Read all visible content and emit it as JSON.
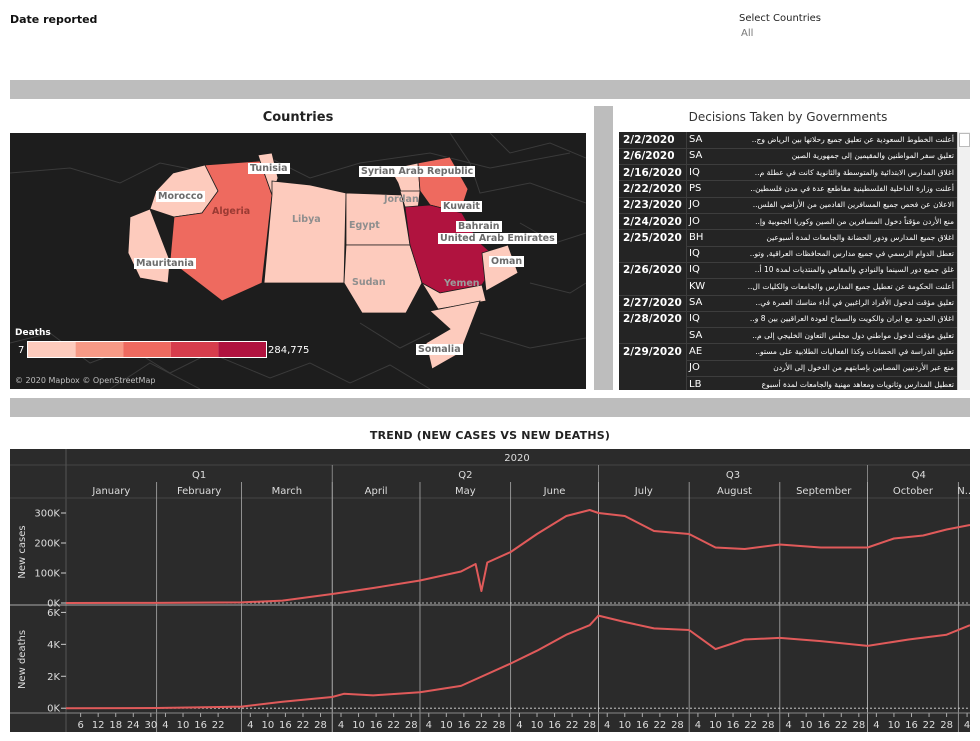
{
  "filters": {
    "date_label": "Date reported",
    "countries_label": "Select Countries",
    "countries_value": "All"
  },
  "map": {
    "title": "Countries",
    "legend_title": "Deaths",
    "legend_min": "7",
    "legend_max": "284,775",
    "attribution": "© 2020 Mapbox © OpenStreetMap",
    "legend_colors": [
      "#fdcbbd",
      "#f79a86",
      "#ee6a5f",
      "#d63d4c",
      "#b0133f"
    ],
    "country_labels": [
      "Tunisia",
      "Morocco",
      "Algeria",
      "Libya",
      "Egypt",
      "Syrian Arab Republic",
      "Jordan",
      "Kuwait",
      "Bahrain",
      "United Arab Emirates",
      "Oman",
      "Mauritania",
      "Sudan",
      "Yemen",
      "Somalia"
    ]
  },
  "decisions": {
    "title": "Decisions Taken by Governments",
    "rows": [
      {
        "date": "2/2/2020",
        "country": "SA",
        "text": "أعلنت الخطوط السعودية عن تعليق جميع رحلاتها بين الرياض وج.."
      },
      {
        "date": "2/6/2020",
        "country": "SA",
        "text": "تعليق سفر المواطنين والمقيمين إلى جمهورية الصين"
      },
      {
        "date": "2/16/2020",
        "country": "IQ",
        "text": "اغلاق المدارس الابتدائية والمتوسطة والثانوية كانت في عطلة م.."
      },
      {
        "date": "2/22/2020",
        "country": "PS",
        "text": "أعلنت وزارة الداخلية الفلسطينية مقاطعع عدة في مدن فلسطين.."
      },
      {
        "date": "2/23/2020",
        "country": "JO",
        "text": "الاعلان عن فحص جميع المسافرين القادمين من الأراضي الفلس.."
      },
      {
        "date": "2/24/2020",
        "country": "JO",
        "text": "منع الأردن مؤقتاً دخول المسافرين من الصين وكوريا الجنوبية وإ.."
      },
      {
        "date": "2/25/2020",
        "country": "BH",
        "text": "اغلاق جميع المدارس ودور الحضانة والجامعات لمدة أسبوعين"
      },
      {
        "date": "",
        "country": "IQ",
        "text": "تعطل الدوام الرسمي في جميع مدارس المحافظات العراقية, وتو.."
      },
      {
        "date": "2/26/2020",
        "country": "IQ",
        "text": "غلق جميع دور السينما والنوادي والمقاهي والمنتديات لمدة 10 أ.."
      },
      {
        "date": "",
        "country": "KW",
        "text": "أعلنت الحكومة عن تعطيل جميع المدارس والجامعات والكليات ال.."
      },
      {
        "date": "2/27/2020",
        "country": "SA",
        "text": "تعليق مؤقت لدخول الأفراد الراغبين في أداء مناسك العمرة في.."
      },
      {
        "date": "2/28/2020",
        "country": "IQ",
        "text": "اغلاق الحدود مع ايران والكويت والسماح لعودة العراقيين بين 8 و.."
      },
      {
        "date": "",
        "country": "SA",
        "text": "تعليق مؤقت لدخول مواطني دول مجلس التعاون الخليجي إلى م.."
      },
      {
        "date": "2/29/2020",
        "country": "AE",
        "text": "تعليق الدراسة في الحضانات وكذا الفعاليات الطلابية على مستو.."
      },
      {
        "date": "",
        "country": "JO",
        "text": "منع عبر الأردنيين المصابين بإصابتهم من الدخول إلى الأردن"
      },
      {
        "date": "",
        "country": "LB",
        "text": "تعطيل المدارس وثانويات ومعاهد مهنية والجامعات لمدة أسبوع"
      }
    ]
  },
  "trend": {
    "title": "TREND (NEW CASES VS NEW DEATHS)",
    "year": "2020",
    "quarters": [
      "Q1",
      "Q2",
      "Q3",
      "Q4"
    ],
    "months": [
      "January",
      "February",
      "March",
      "April",
      "May",
      "June",
      "July",
      "August",
      "September",
      "October",
      "N.."
    ],
    "day_ticks": [
      "6",
      "12",
      "18",
      "24",
      "30",
      "4",
      "10",
      "16",
      "22",
      "4",
      "10",
      "16",
      "22",
      "28",
      "4",
      "10",
      "16",
      "22",
      "28",
      "4",
      "10",
      "16",
      "22",
      "28",
      "4",
      "10",
      "16",
      "22",
      "28",
      "4",
      "10",
      "16",
      "22",
      "28",
      "4",
      "10",
      "16",
      "22",
      "28",
      "4",
      "10",
      "16",
      "22",
      "28",
      "4",
      "10",
      "16",
      "22",
      "28",
      "4"
    ],
    "line_color": "#e05a5a"
  },
  "chart_data": [
    {
      "type": "line",
      "ylabel": "New cases",
      "ylim": [
        0,
        340000
      ],
      "yticks": [
        "0K",
        "100K",
        "200K",
        "300K"
      ],
      "x_range": [
        "2020-01-01",
        "2020-11-05"
      ],
      "series": [
        {
          "x": [
            "2020-01-01",
            "2020-02-01",
            "2020-03-01",
            "2020-03-15",
            "2020-04-01",
            "2020-04-15",
            "2020-05-01",
            "2020-05-15",
            "2020-05-20",
            "2020-05-22",
            "2020-05-24",
            "2020-06-01",
            "2020-06-10",
            "2020-06-20",
            "2020-06-28",
            "2020-07-01",
            "2020-07-10",
            "2020-07-20",
            "2020-08-01",
            "2020-08-10",
            "2020-08-20",
            "2020-09-01",
            "2020-09-15",
            "2020-10-01",
            "2020-10-10",
            "2020-10-20",
            "2020-10-28",
            "2020-11-05"
          ],
          "values": [
            0,
            200,
            2000,
            8000,
            30000,
            50000,
            75000,
            105000,
            130000,
            40000,
            135000,
            170000,
            230000,
            290000,
            310000,
            300000,
            290000,
            240000,
            230000,
            185000,
            180000,
            195000,
            185000,
            185000,
            215000,
            225000,
            245000,
            260000
          ]
        }
      ]
    },
    {
      "type": "line",
      "ylabel": "New deaths",
      "ylim": [
        -300,
        6400
      ],
      "yticks": [
        "0K",
        "2K",
        "4K",
        "6K"
      ],
      "x_range": [
        "2020-01-01",
        "2020-11-05"
      ],
      "series": [
        {
          "x": [
            "2020-01-01",
            "2020-02-01",
            "2020-03-01",
            "2020-03-15",
            "2020-04-01",
            "2020-04-05",
            "2020-04-15",
            "2020-05-01",
            "2020-05-15",
            "2020-06-01",
            "2020-06-10",
            "2020-06-20",
            "2020-06-28",
            "2020-07-01",
            "2020-07-10",
            "2020-07-20",
            "2020-08-01",
            "2020-08-10",
            "2020-08-20",
            "2020-09-01",
            "2020-09-15",
            "2020-10-01",
            "2020-10-15",
            "2020-10-28",
            "2020-11-05"
          ],
          "values": [
            0,
            10,
            100,
            400,
            700,
            900,
            800,
            1000,
            1400,
            2800,
            3600,
            4600,
            5200,
            5800,
            5400,
            5000,
            4900,
            3700,
            4300,
            4400,
            4200,
            3900,
            4300,
            4600,
            5200
          ]
        }
      ]
    }
  ]
}
